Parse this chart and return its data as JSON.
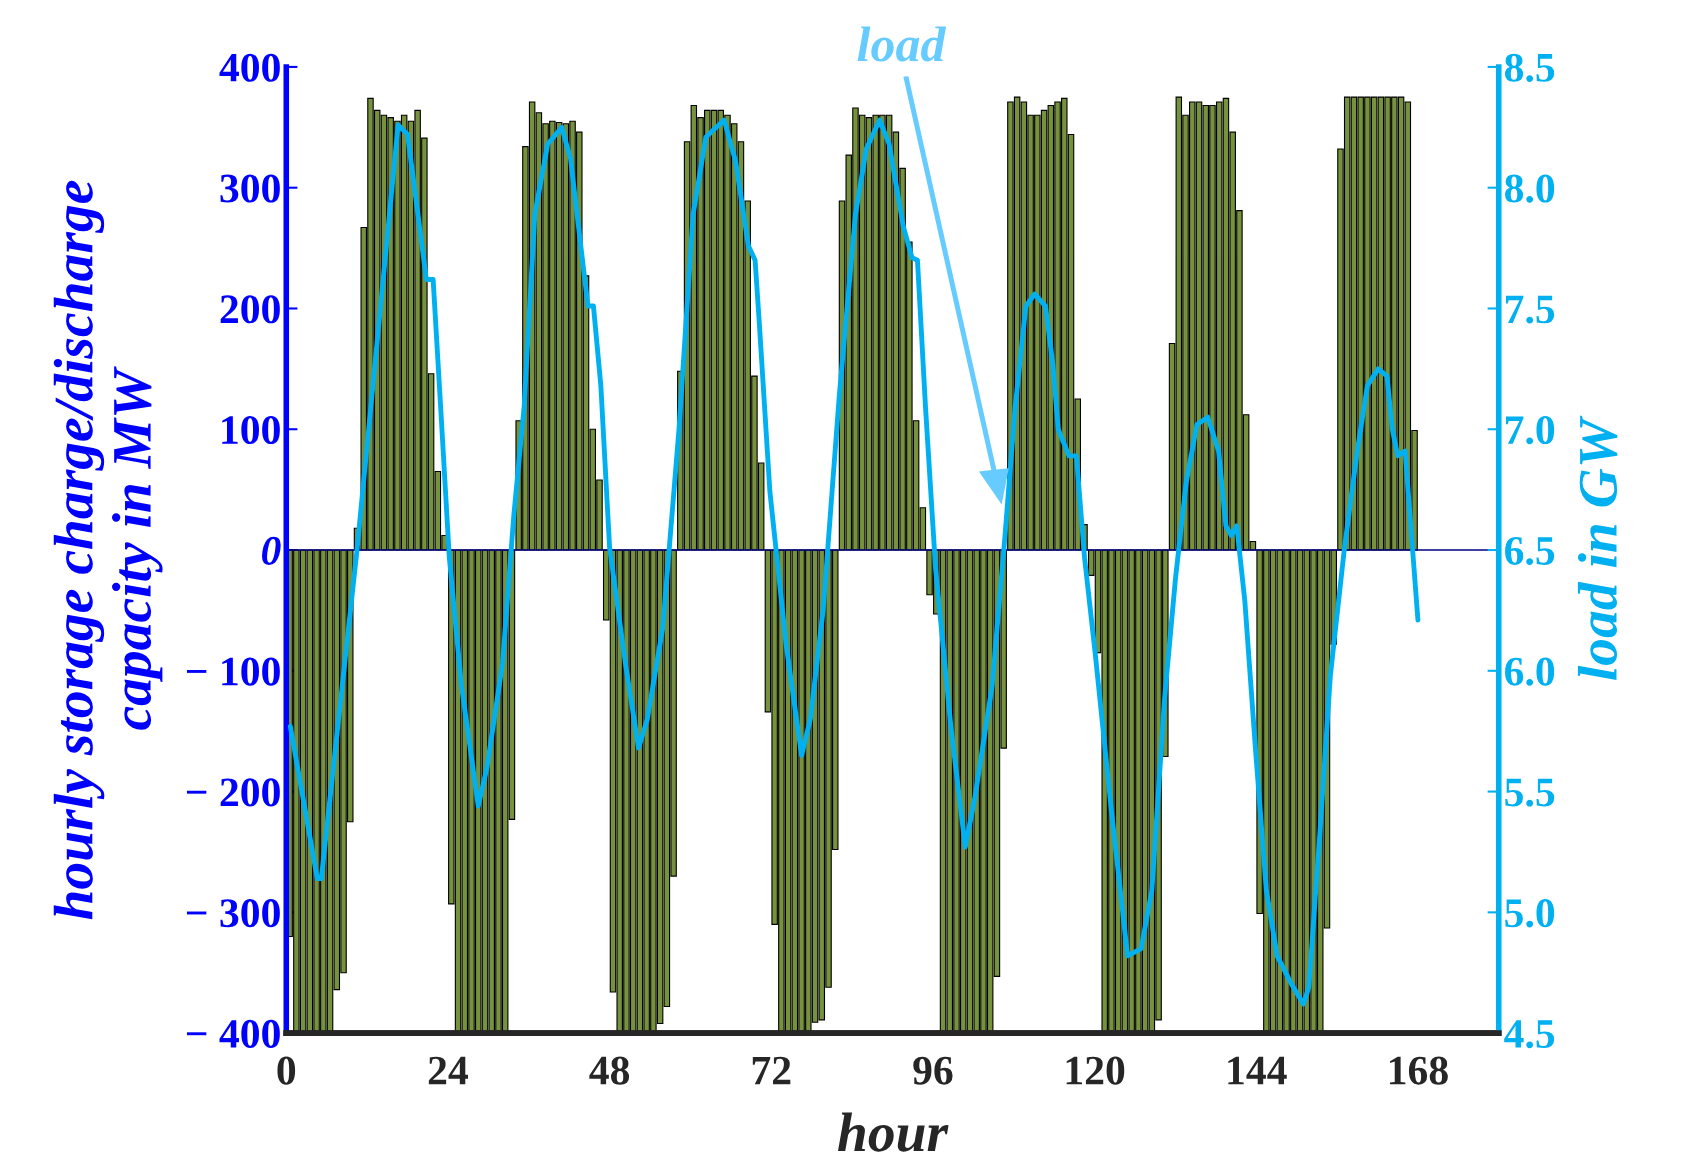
{
  "chart_data": {
    "type": "bar",
    "xlabel": "hour",
    "ylabel": "hourly storage charge/discharge\ncapacity in MW",
    "y2label": "load in GW",
    "x": [
      0.5,
      1.5,
      2.5,
      3.5,
      4.5,
      5.5,
      6.5,
      7.5,
      8.5,
      9.5,
      10.5,
      11.5,
      12.5,
      13.5,
      14.5,
      15.5,
      16.5,
      17.5,
      18.5,
      19.5,
      20.5,
      21.5,
      22.5,
      23.5,
      24.5,
      25.5,
      26.5,
      27.5,
      28.5,
      29.5,
      30.5,
      31.5,
      32.5,
      33.5,
      34.5,
      35.5,
      36.5,
      37.5,
      38.5,
      39.5,
      40.5,
      41.5,
      42.5,
      43.5,
      44.5,
      45.5,
      46.5,
      47.5,
      48.5,
      49.5,
      50.5,
      51.5,
      52.5,
      53.5,
      54.5,
      55.5,
      56.5,
      57.5,
      58.5,
      59.5,
      60.5,
      61.5,
      62.5,
      63.5,
      64.5,
      65.5,
      66.5,
      67.5,
      68.5,
      69.5,
      70.5,
      71.5,
      72.5,
      73.5,
      74.5,
      75.5,
      76.5,
      77.5,
      78.5,
      79.5,
      80.5,
      81.5,
      82.5,
      83.5,
      84.5,
      85.5,
      86.5,
      87.5,
      88.5,
      89.5,
      90.5,
      91.5,
      92.5,
      93.5,
      94.5,
      95.5,
      96.5,
      97.5,
      98.5,
      99.5,
      100.5,
      101.5,
      102.5,
      103.5,
      104.5,
      105.5,
      106.5,
      107.5,
      108.5,
      109.5,
      110.5,
      111.5,
      112.5,
      113.5,
      114.5,
      115.5,
      116.5,
      117.5,
      118.5,
      119.5,
      120.5,
      121.5,
      122.5,
      123.5,
      124.5,
      125.5,
      126.5,
      127.5,
      128.5,
      129.5,
      130.5,
      131.5,
      132.5,
      133.5,
      134.5,
      135.5,
      136.5,
      137.5,
      138.5,
      139.5,
      140.5,
      141.5,
      142.5,
      143.5,
      144.5,
      145.5,
      146.5,
      147.5,
      148.5,
      149.5,
      150.5,
      151.5,
      152.5,
      153.5,
      154.5,
      155.5,
      156.5,
      157.5,
      158.5,
      159.5,
      160.5,
      161.5,
      162.5,
      163.5,
      164.5,
      165.5,
      166.5,
      167.5
    ],
    "series": [
      {
        "type": "bar",
        "color": "#76923c",
        "values": [
          -320,
          -400,
          -400,
          -400,
          -400,
          -400,
          -400,
          -364,
          -350,
          -225,
          18,
          267,
          374,
          364,
          360,
          358,
          355,
          360,
          355,
          364,
          341,
          146,
          65,
          12,
          -293,
          -400,
          -400,
          -400,
          -400,
          -400,
          -400,
          -400,
          -400,
          -223,
          107,
          334,
          371,
          362,
          353,
          355,
          354,
          353,
          355,
          346,
          227,
          100,
          58,
          -58,
          -366,
          -400,
          -400,
          -400,
          -400,
          -400,
          -400,
          -392,
          -378,
          -270,
          148,
          338,
          368,
          358,
          364,
          364,
          364,
          360,
          353,
          338,
          289,
          144,
          72,
          -134,
          -310,
          -400,
          -400,
          -400,
          -400,
          -400,
          -391,
          -389,
          -362,
          -248,
          289,
          327,
          366,
          360,
          358,
          360,
          360,
          360,
          346,
          316,
          255,
          107,
          35,
          -37,
          -53,
          -400,
          -400,
          -400,
          -400,
          -400,
          -400,
          -400,
          -400,
          -353,
          -164,
          371,
          375,
          371,
          360,
          360,
          364,
          368,
          371,
          374,
          344,
          125,
          21,
          -21,
          -85,
          -400,
          -400,
          -400,
          -400,
          -400,
          -400,
          -400,
          -400,
          -389,
          -171,
          171,
          375,
          360,
          371,
          371,
          368,
          368,
          371,
          374,
          346,
          281,
          112,
          7,
          -301,
          -400,
          -400,
          -400,
          -400,
          -400,
          -400,
          -400,
          -400,
          -400,
          -313,
          -78,
          332,
          375,
          375,
          375,
          375,
          375,
          375,
          375,
          375,
          375,
          371,
          99
        ]
      },
      {
        "type": "line",
        "axis": "y2",
        "color": "#00b0f0",
        "x": [
          0.6,
          4.6,
          5.2,
          10.5,
          16.6,
          18.0,
          20.8,
          21.8,
          22.9,
          24.2,
          26.0,
          28.5,
          29.8,
          32.1,
          33.8,
          35.3,
          36.9,
          38.8,
          40.9,
          42.2,
          44.1,
          44.8,
          45.6,
          46.7,
          48.0,
          50.4,
          52.3,
          53.6,
          55.9,
          58.3,
          60.4,
          62.3,
          65.0,
          66.7,
          68.6,
          69.6,
          70.2,
          71.8,
          74.2,
          76.5,
          77.8,
          79.7,
          82.1,
          84.5,
          86.1,
          88.1,
          89.5,
          91.6,
          92.9,
          93.7,
          94.9,
          96.4,
          98.7,
          100.8,
          102.2,
          104.8,
          106.7,
          108.2,
          109.8,
          111.1,
          112.7,
          113.8,
          114.6,
          116.2,
          117.3,
          118.5,
          120.1,
          122.5,
          124.9,
          126.9,
          128.5,
          130.4,
          132.0,
          133.6,
          135.2,
          136.8,
          138.4,
          139.5,
          140.3,
          141.1,
          142.3,
          143.9,
          145.5,
          147.1,
          149.1,
          151.0,
          151.8,
          153.4,
          155.0,
          157.1,
          159.0,
          160.5,
          162.1,
          163.4,
          164.2,
          165.0,
          166.1,
          168.0
        ],
        "values": [
          5.77,
          5.14,
          5.14,
          6.5,
          8.26,
          8.22,
          7.62,
          7.62,
          7.1,
          6.47,
          5.94,
          5.44,
          5.6,
          6.03,
          6.65,
          7.09,
          7.89,
          8.18,
          8.25,
          8.12,
          7.67,
          7.51,
          7.51,
          7.18,
          6.51,
          6.02,
          5.68,
          5.8,
          6.18,
          7.0,
          7.89,
          8.21,
          8.28,
          8.11,
          7.76,
          7.7,
          7.45,
          6.74,
          6.11,
          5.65,
          5.8,
          6.25,
          7.14,
          7.89,
          8.16,
          8.28,
          8.18,
          7.84,
          7.71,
          7.7,
          7.09,
          6.42,
          5.76,
          5.27,
          5.47,
          5.94,
          6.56,
          7.09,
          7.51,
          7.56,
          7.51,
          7.27,
          7.0,
          6.89,
          6.89,
          6.47,
          6.07,
          5.42,
          4.82,
          4.85,
          5.09,
          5.89,
          6.38,
          6.78,
          7.02,
          7.05,
          6.91,
          6.6,
          6.56,
          6.6,
          6.29,
          5.67,
          5.09,
          4.82,
          4.71,
          4.62,
          4.69,
          5.31,
          5.98,
          6.51,
          6.91,
          7.18,
          7.25,
          7.22,
          7.0,
          6.89,
          6.91,
          6.21
        ]
      }
    ],
    "xlim": [
      0,
      180
    ],
    "xticks": [
      0,
      24,
      48,
      72,
      96,
      120,
      144,
      168
    ],
    "ylim": [
      -400,
      400
    ],
    "yticks": [
      {
        "value": -400,
        "label": "− 400"
      },
      {
        "value": -300,
        "label": "− 300"
      },
      {
        "value": -200,
        "label": "− 200"
      },
      {
        "value": -100,
        "label": "− 100"
      },
      0,
      100,
      200,
      300,
      400
    ],
    "y2lim": [
      4.5,
      8.5
    ],
    "y2ticks": [
      4.5,
      {
        "value": 5.0,
        "label": "5.0"
      },
      5.5,
      {
        "value": 6.0,
        "label": "6.0"
      },
      6.5,
      {
        "value": 7.0,
        "label": "7.0"
      },
      7.5,
      {
        "value": 8.0,
        "label": "8.0"
      },
      8.5
    ],
    "ref_lines": [
      {
        "axis": "y",
        "value": 0,
        "color": "#000080"
      }
    ],
    "annotations": [
      "load"
    ],
    "grid": false,
    "legend": false
  }
}
